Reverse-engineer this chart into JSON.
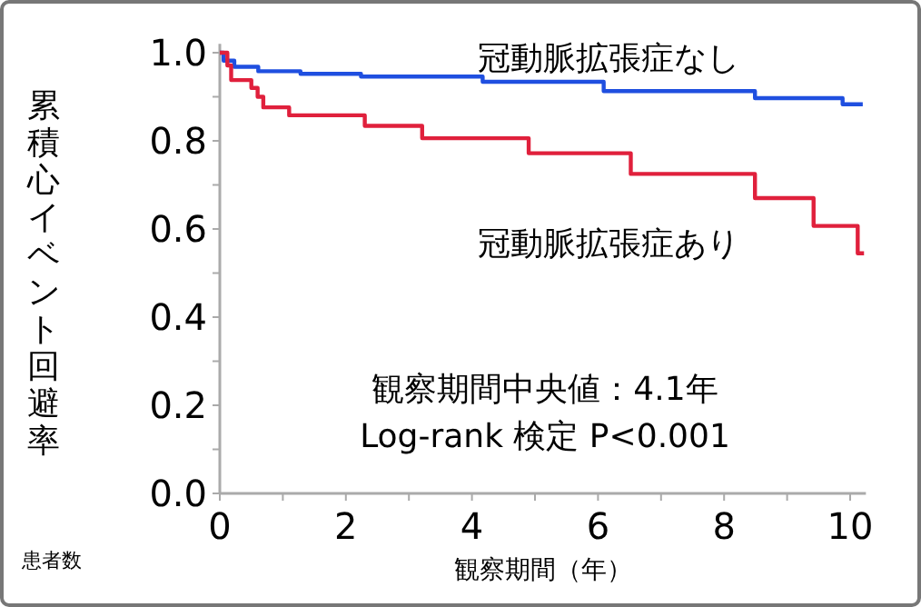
{
  "chart_data": {
    "type": "step",
    "xlabel": "観察期間（年）",
    "ylabel": "累積心イベント回避率",
    "xlim": [
      0,
      10.25
    ],
    "ylim": [
      0,
      1.02
    ],
    "xticks": [
      0,
      {
        "value": 1,
        "label": null
      },
      2,
      {
        "value": 3,
        "label": null
      },
      4,
      {
        "value": 5,
        "label": null
      },
      6,
      {
        "value": 7,
        "label": null
      },
      8,
      {
        "value": 9,
        "label": null
      },
      10
    ],
    "yticks": [
      {
        "value": 0,
        "label": "0.0"
      },
      {
        "value": 0.1,
        "label": null
      },
      0.2,
      {
        "value": 0.3,
        "label": null
      },
      0.4,
      {
        "value": 0.5,
        "label": null
      },
      0.6,
      {
        "value": 0.7,
        "label": null
      },
      0.8,
      {
        "value": 0.9,
        "label": null
      },
      {
        "value": 1,
        "label": "1.0"
      }
    ],
    "grid": false,
    "series": [
      {
        "name": "冠動脈拡張症なし",
        "color": "#1f4fe0",
        "x": [
          0,
          0.06,
          0.23,
          0.61,
          1.28,
          2.24,
          4.17,
          6.09,
          8.49,
          9.79,
          9.88,
          10.2
        ],
        "values": [
          1.0,
          0.982,
          0.968,
          0.958,
          0.952,
          0.946,
          0.934,
          0.913,
          0.897,
          0.897,
          0.883,
          0.883
        ]
      },
      {
        "name": "冠動脈拡張症あり",
        "color": "#e0203c",
        "x": [
          0,
          0.12,
          0.18,
          0.5,
          0.6,
          0.69,
          1.1,
          2.3,
          3.21,
          4.9,
          6.52,
          8.49,
          9.42,
          10.12,
          10.22
        ],
        "values": [
          1.0,
          0.971,
          0.938,
          0.92,
          0.9,
          0.876,
          0.858,
          0.834,
          0.806,
          0.772,
          0.725,
          0.67,
          0.607,
          0.545,
          0.545
        ]
      }
    ],
    "annotations": [
      "観察期間中央値：4.1年",
      "Log-rank 検定 P<0.001",
      "患者数"
    ]
  }
}
